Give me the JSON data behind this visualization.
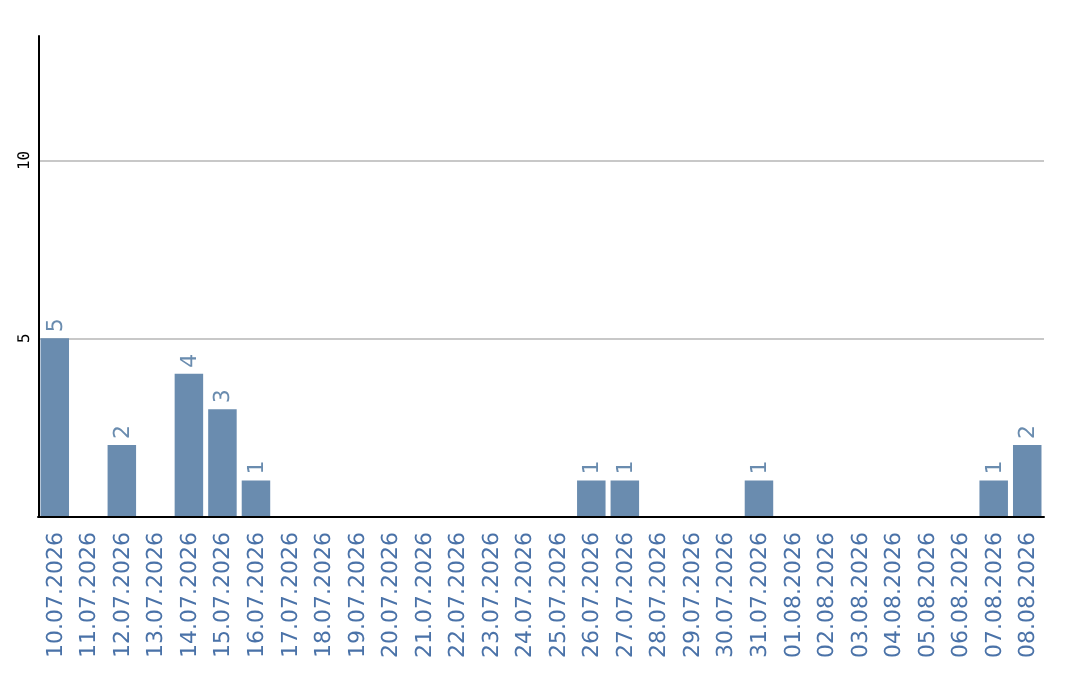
{
  "chart_data": {
    "type": "bar",
    "categories": [
      "10.07.2026",
      "11.07.2026",
      "12.07.2026",
      "13.07.2026",
      "14.07.2026",
      "15.07.2026",
      "16.07.2026",
      "17.07.2026",
      "18.07.2026",
      "19.07.2026",
      "20.07.2026",
      "21.07.2026",
      "22.07.2026",
      "23.07.2026",
      "24.07.2026",
      "25.07.2026",
      "26.07.2026",
      "27.07.2026",
      "28.07.2026",
      "29.07.2026",
      "30.07.2026",
      "31.07.2026",
      "01.08.2026",
      "02.08.2026",
      "03.08.2026",
      "04.08.2026",
      "05.08.2026",
      "06.08.2026",
      "07.08.2026",
      "08.08.2026"
    ],
    "values": [
      5,
      0,
      2,
      0,
      4,
      3,
      1,
      0,
      0,
      0,
      0,
      0,
      0,
      0,
      0,
      0,
      1,
      1,
      0,
      0,
      0,
      1,
      0,
      0,
      0,
      0,
      0,
      0,
      1,
      2
    ],
    "value_labels": [
      "5",
      null,
      "2",
      null,
      "4",
      "3",
      "1",
      null,
      null,
      null,
      null,
      null,
      null,
      null,
      null,
      null,
      "1",
      "1",
      null,
      null,
      null,
      "1",
      null,
      null,
      null,
      null,
      null,
      null,
      "1",
      "2"
    ],
    "color": "#6a8caf",
    "ylim": [
      0,
      13.5
    ],
    "yticks": [
      5,
      10
    ],
    "grid": "y"
  }
}
